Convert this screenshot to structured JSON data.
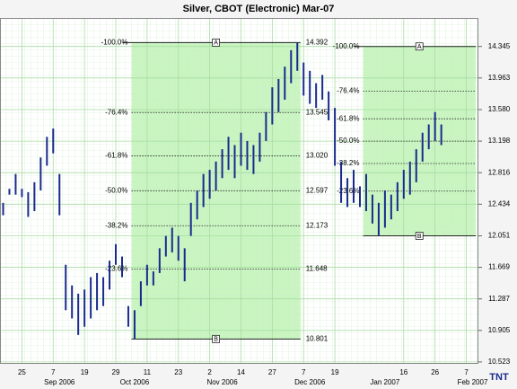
{
  "chart_data": {
    "type": "range-bar",
    "title": "Silver, CBOT (Electronic) Mar-07",
    "color": "#1a2a8c",
    "grid": true,
    "ylim": [
      10.5,
      14.69
    ],
    "yticks": [
      14.345,
      13.963,
      {
        "value": 13.58,
        "label": "13.580"
      },
      13.198,
      12.816,
      12.434,
      12.051,
      11.669,
      11.287,
      10.905,
      10.523
    ],
    "categories": [
      null,
      null,
      null,
      "25",
      null,
      null,
      null,
      null,
      "7",
      null,
      null,
      null,
      null,
      "19",
      null,
      null,
      null,
      null,
      "29",
      null,
      null,
      null,
      null,
      "11",
      null,
      null,
      null,
      null,
      "23",
      null,
      null,
      null,
      null,
      "2",
      null,
      null,
      null,
      null,
      "14",
      null,
      null,
      null,
      null,
      "27",
      null,
      null,
      null,
      null,
      "7",
      null,
      null,
      null,
      null,
      "19",
      null,
      null,
      null,
      null,
      null,
      null,
      null,
      null,
      null,
      null,
      "16",
      null,
      null,
      null,
      null,
      "26",
      null,
      null,
      null,
      null,
      "7",
      null
    ],
    "months": [
      null,
      null,
      null,
      null,
      null,
      null,
      null,
      null,
      null,
      "Sep 2006",
      null,
      null,
      null,
      null,
      null,
      null,
      null,
      null,
      null,
      null,
      null,
      "Oct 2006",
      null,
      null,
      null,
      null,
      null,
      null,
      null,
      null,
      null,
      null,
      null,
      null,
      null,
      "Nov 2006",
      null,
      null,
      null,
      null,
      null,
      null,
      null,
      null,
      null,
      null,
      null,
      null,
      null,
      "Dec 2006",
      null,
      null,
      null,
      null,
      null,
      null,
      null,
      null,
      null,
      null,
      null,
      "Jan 2007",
      null,
      null,
      null,
      null,
      null,
      null,
      null,
      null,
      null,
      null,
      null,
      null,
      null,
      "Feb 2007"
    ],
    "high": [
      12.45,
      12.62,
      12.8,
      12.62,
      12.58,
      12.7,
      13.0,
      13.25,
      13.35,
      12.8,
      11.7,
      11.45,
      11.35,
      11.4,
      11.55,
      11.6,
      11.55,
      11.75,
      11.95,
      11.8,
      11.2,
      11.15,
      11.5,
      11.7,
      11.62,
      11.9,
      12.05,
      12.15,
      12.05,
      11.9,
      12.45,
      12.6,
      12.8,
      12.85,
      12.95,
      13.1,
      13.25,
      13.15,
      13.3,
      13.2,
      13.15,
      13.3,
      13.55,
      13.85,
      13.95,
      14.1,
      14.3,
      14.39,
      14.15,
      14.05,
      13.9,
      14.0,
      13.8,
      13.6,
      12.95,
      12.75,
      12.85,
      12.65,
      12.8,
      12.55,
      12.45,
      12.6,
      12.55,
      12.7,
      12.85,
      12.95,
      13.1,
      13.3,
      13.4,
      13.55,
      13.4,
      null,
      null,
      null,
      null,
      null
    ],
    "low": [
      12.3,
      12.55,
      12.55,
      12.52,
      12.28,
      12.35,
      12.6,
      12.9,
      13.05,
      12.3,
      11.15,
      11.05,
      10.85,
      10.95,
      11.05,
      11.15,
      11.2,
      11.4,
      11.7,
      11.55,
      10.95,
      10.8,
      11.2,
      11.45,
      11.45,
      11.6,
      11.8,
      11.85,
      11.75,
      11.5,
      12.05,
      12.25,
      12.4,
      12.5,
      12.6,
      12.75,
      12.85,
      12.75,
      12.9,
      12.85,
      12.8,
      12.95,
      13.2,
      13.4,
      13.55,
      13.7,
      13.9,
      14.05,
      13.75,
      13.65,
      13.6,
      13.7,
      13.45,
      12.9,
      12.45,
      12.4,
      12.45,
      12.4,
      12.35,
      12.2,
      12.05,
      12.15,
      12.25,
      12.35,
      12.5,
      12.55,
      12.7,
      12.95,
      13.1,
      13.2,
      13.15,
      null,
      null,
      null,
      null,
      null
    ],
    "fib_sets": [
      {
        "start": 21,
        "end": 47,
        "levels": [
          "-100.0%",
          "-76.4%",
          "-61.8%",
          "-50.0%",
          "-38.2%",
          "-23.6%"
        ],
        "prices": [
          14.392,
          13.545,
          13.02,
          12.597,
          12.173,
          11.648
        ],
        "price_labels": [
          "14.392",
          "13.545",
          "13.020",
          "12.597",
          "12.173",
          "11.648"
        ],
        "low": 10.801,
        "low_label": "10.801",
        "top_marker": "A",
        "bottom_marker": "B"
      },
      {
        "start": 58,
        "end": 75,
        "levels": [
          "-100.0%",
          "-76.4%",
          "-61.8%",
          "-50.0%",
          "-38.2%",
          "-23.6%"
        ],
        "prices": [
          14.345,
          13.804,
          13.469,
          13.198,
          12.927,
          12.592
        ],
        "low": 12.051,
        "top_marker": "A",
        "bottom_marker": "B"
      }
    ],
    "logo": "TNT"
  }
}
